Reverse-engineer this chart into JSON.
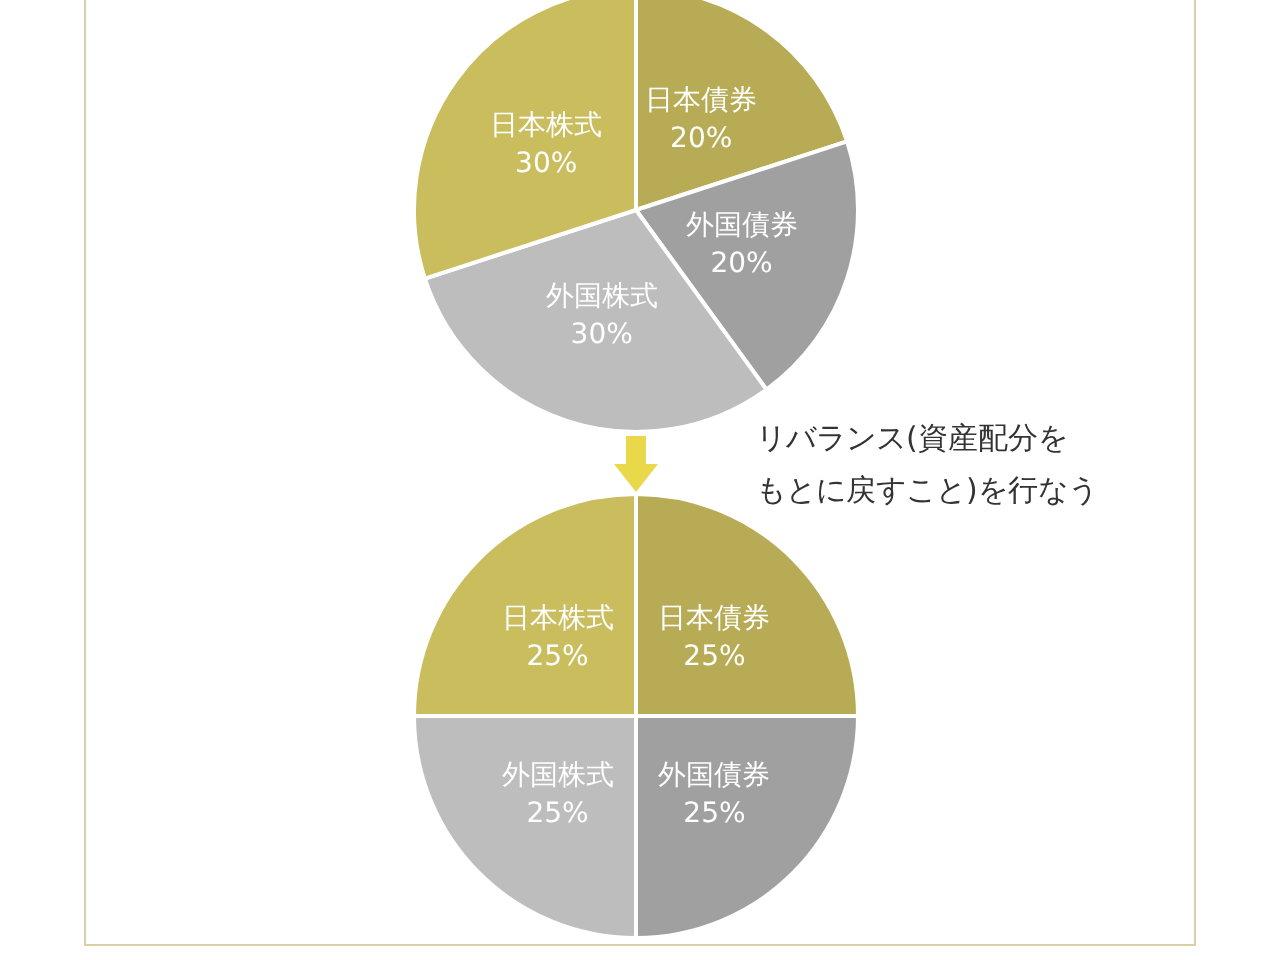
{
  "chart_data": [
    {
      "type": "pie",
      "categories": [
        "日本債券",
        "外国債券",
        "外国株式",
        "日本株式"
      ],
      "values": [
        20,
        20,
        30,
        30
      ],
      "colors": [
        "#b8ab55",
        "#a0a0a0",
        "#bdbdbd",
        "#c9bd5e"
      ],
      "value_labels": [
        "20%",
        "20%",
        "30%",
        "30%"
      ],
      "annotations": [
        "リバランス(資産配分をもとに戻すこと)を行なう"
      ]
    },
    {
      "type": "pie",
      "categories": [
        "日本債券",
        "外国債券",
        "外国株式",
        "日本株式"
      ],
      "values": [
        25,
        25,
        25,
        25
      ],
      "colors": [
        "#b8ab55",
        "#a0a0a0",
        "#bdbdbd",
        "#c9bd5e"
      ],
      "value_labels": [
        "25%",
        "25%",
        "25%",
        "25%"
      ]
    }
  ]
}
